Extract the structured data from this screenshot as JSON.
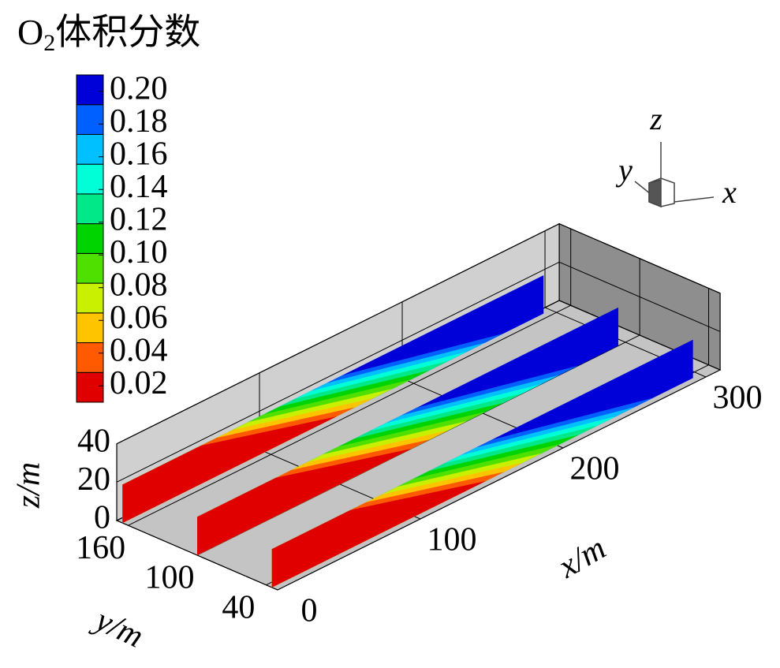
{
  "chart_data": {
    "type": "contour3d",
    "title": {
      "main": "O",
      "sub": "2",
      "rest": "体积分数"
    },
    "colorbar": {
      "clim": [
        0.01,
        0.21
      ],
      "colors": [
        "#e00000",
        "#ff5a00",
        "#ffc400",
        "#c8f000",
        "#50e000",
        "#00d400",
        "#00e888",
        "#00ffd6",
        "#00c0ff",
        "#0060ff",
        "#0000d8"
      ],
      "ticks": [
        {
          "value": 0.2,
          "label": "0.20"
        },
        {
          "value": 0.18,
          "label": "0.18"
        },
        {
          "value": 0.16,
          "label": "0.16"
        },
        {
          "value": 0.14,
          "label": "0.14"
        },
        {
          "value": 0.12,
          "label": "0.12"
        },
        {
          "value": 0.1,
          "label": "0.10"
        },
        {
          "value": 0.08,
          "label": "0.08"
        },
        {
          "value": 0.06,
          "label": "0.06"
        },
        {
          "value": 0.04,
          "label": "0.04"
        },
        {
          "value": 0.02,
          "label": "0.02"
        }
      ]
    },
    "x_axis": {
      "label": "x/m",
      "lim": [
        0,
        310
      ],
      "ticks": [
        0,
        100,
        200,
        300
      ]
    },
    "y_axis": {
      "label": "y/m",
      "lim": [
        30,
        170
      ],
      "ticks": [
        40,
        100,
        160
      ]
    },
    "z_axis": {
      "label": "z/m",
      "lim": [
        0,
        40
      ],
      "ticks": [
        0,
        20,
        40
      ]
    },
    "triad": {
      "x": "x",
      "y": "y",
      "z": "z"
    }
  }
}
